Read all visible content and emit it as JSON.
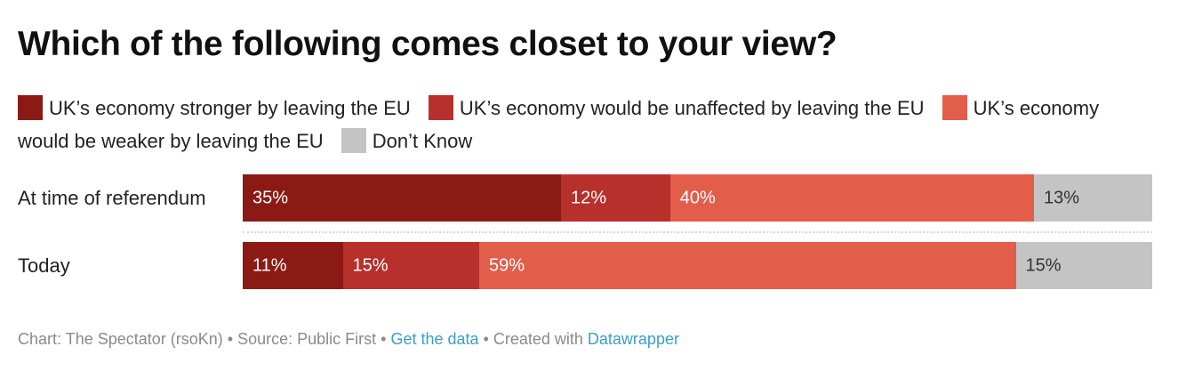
{
  "chart_data": {
    "type": "bar",
    "orientation": "horizontal",
    "stacked": true,
    "normalized": true,
    "title": "Which of the following comes closet to your view?",
    "categories": [
      "At time of referendum",
      "Today"
    ],
    "series": [
      {
        "name": "UK’s economy stronger by leaving the EU",
        "color": "#8b1a14",
        "label_color": "#ffffff",
        "values": [
          35,
          11
        ],
        "labels": [
          "35%",
          "11%"
        ]
      },
      {
        "name": "UK’s economy would be unaffected by leaving the EU",
        "color": "#b8302b",
        "label_color": "#ffffff",
        "values": [
          12,
          15
        ],
        "labels": [
          "12%",
          "15%"
        ]
      },
      {
        "name": "UK’s economy would be weaker by leaving the EU",
        "color": "#e35d4b",
        "label_color": "#ffffff",
        "values": [
          40,
          59
        ],
        "labels": [
          "40%",
          "59%"
        ]
      },
      {
        "name": "Don’t Know",
        "color": "#c4c4c4",
        "label_color": "#333333",
        "values": [
          13,
          15
        ],
        "labels": [
          "13%",
          "15%"
        ]
      }
    ],
    "legend_position": "top",
    "grid": false
  },
  "footer": {
    "chart_credit": "Chart: The Spectator (rsoKn)",
    "separator": " • ",
    "source": "Source: Public First",
    "get_data_link": "Get the data",
    "created_with": "Created with ",
    "datawrapper_link": "Datawrapper"
  }
}
